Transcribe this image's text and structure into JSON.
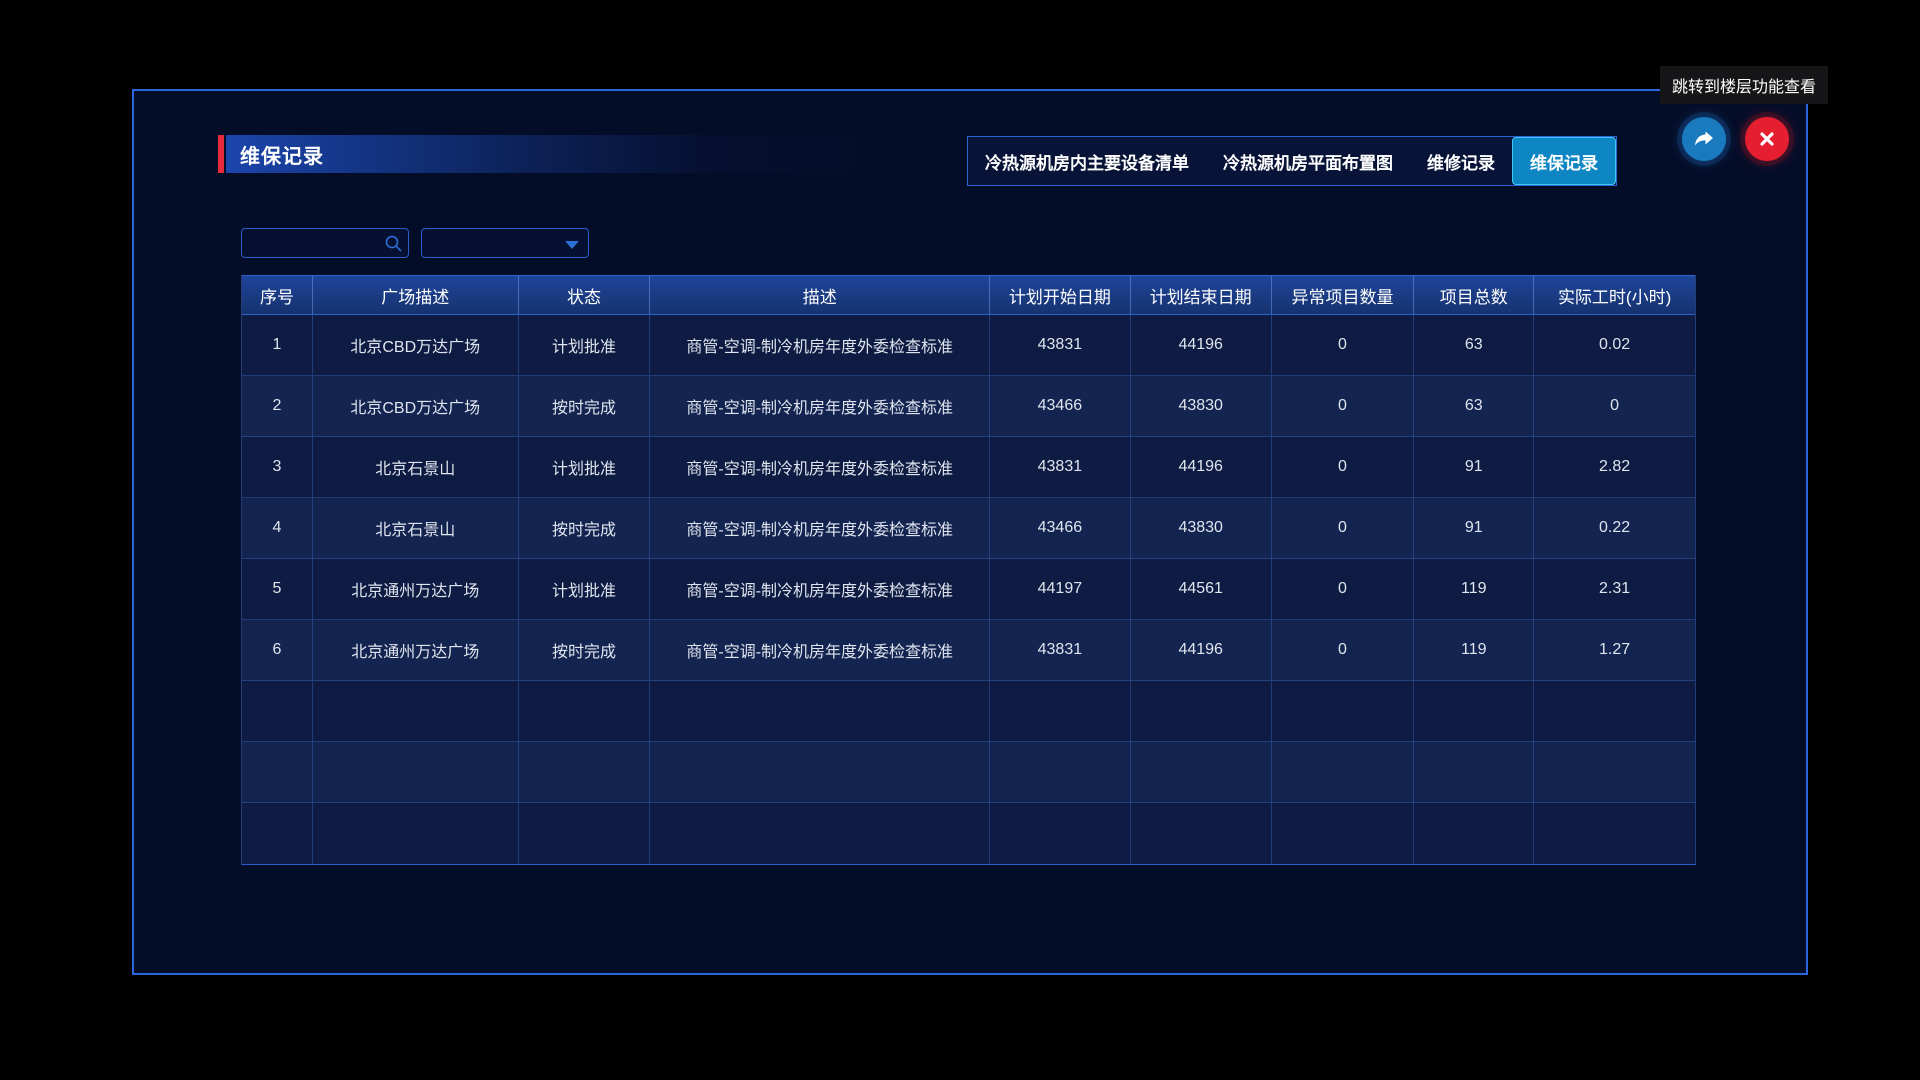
{
  "page": {
    "tooltip_text": "跳转到楼层功能查看"
  },
  "panel": {
    "title": "维保记录"
  },
  "tabs": [
    {
      "label": "冷热源机房内主要设备清单",
      "active": false
    },
    {
      "label": "冷热源机房平面布置图",
      "active": false
    },
    {
      "label": "维修记录",
      "active": false
    },
    {
      "label": "维保记录",
      "active": true
    }
  ],
  "controls": {
    "search_value": "",
    "search_placeholder": "",
    "select_value": ""
  },
  "colors": {
    "accent_red": "#e52a3c",
    "active_tab": "#0e86c4",
    "panel_border": "#2b66de",
    "icon_blue": "#1a7abe",
    "close_red": "#e51f30",
    "header_blue": "#1b3d86",
    "row_odd": "#0e1b42",
    "row_even": "#142450"
  },
  "table": {
    "columns": [
      "序号",
      "广场描述",
      "状态",
      "描述",
      "计划开始日期",
      "计划结束日期",
      "异常项目数量",
      "项目总数",
      "实际工时(小时)"
    ],
    "rows": [
      [
        "1",
        "北京CBD万达广场",
        "计划批准",
        "商管-空调-制冷机房年度外委检查标准",
        "43831",
        "44196",
        "0",
        "63",
        "0.02"
      ],
      [
        "2",
        "北京CBD万达广场",
        "按时完成",
        "商管-空调-制冷机房年度外委检查标准",
        "43466",
        "43830",
        "0",
        "63",
        "0"
      ],
      [
        "3",
        "北京石景山",
        "计划批准",
        "商管-空调-制冷机房年度外委检查标准",
        "43831",
        "44196",
        "0",
        "91",
        "2.82"
      ],
      [
        "4",
        "北京石景山",
        "按时完成",
        "商管-空调-制冷机房年度外委检查标准",
        "43466",
        "43830",
        "0",
        "91",
        "0.22"
      ],
      [
        "5",
        "北京通州万达广场",
        "计划批准",
        "商管-空调-制冷机房年度外委检查标准",
        "44197",
        "44561",
        "0",
        "119",
        "2.31"
      ],
      [
        "6",
        "北京通州万达广场",
        "按时完成",
        "商管-空调-制冷机房年度外委检查标准",
        "43831",
        "44196",
        "0",
        "119",
        "1.27"
      ]
    ],
    "empty_rows": 3
  }
}
